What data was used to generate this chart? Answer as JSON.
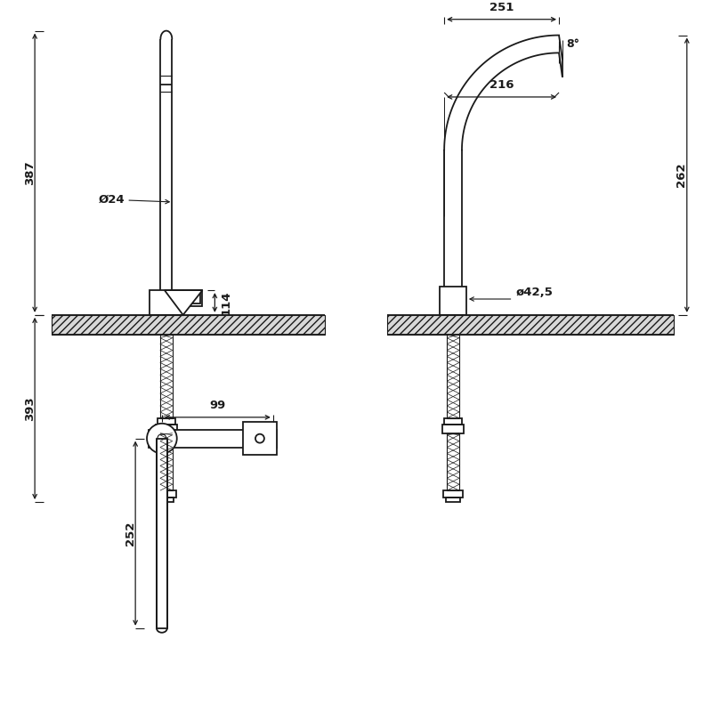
{
  "bg_color": "#ffffff",
  "line_color": "#1a1a1a",
  "fig_width": 8.0,
  "fig_height": 8.0,
  "annotations": {
    "dim_387": "387",
    "dim_393": "393",
    "dim_24": "Ø24",
    "dim_114": "114",
    "dim_251": "251",
    "dim_216": "216",
    "dim_262": "262",
    "dim_8deg": "8°",
    "dim_42_5": "ø42,5",
    "dim_99": "99",
    "dim_252": "252"
  }
}
